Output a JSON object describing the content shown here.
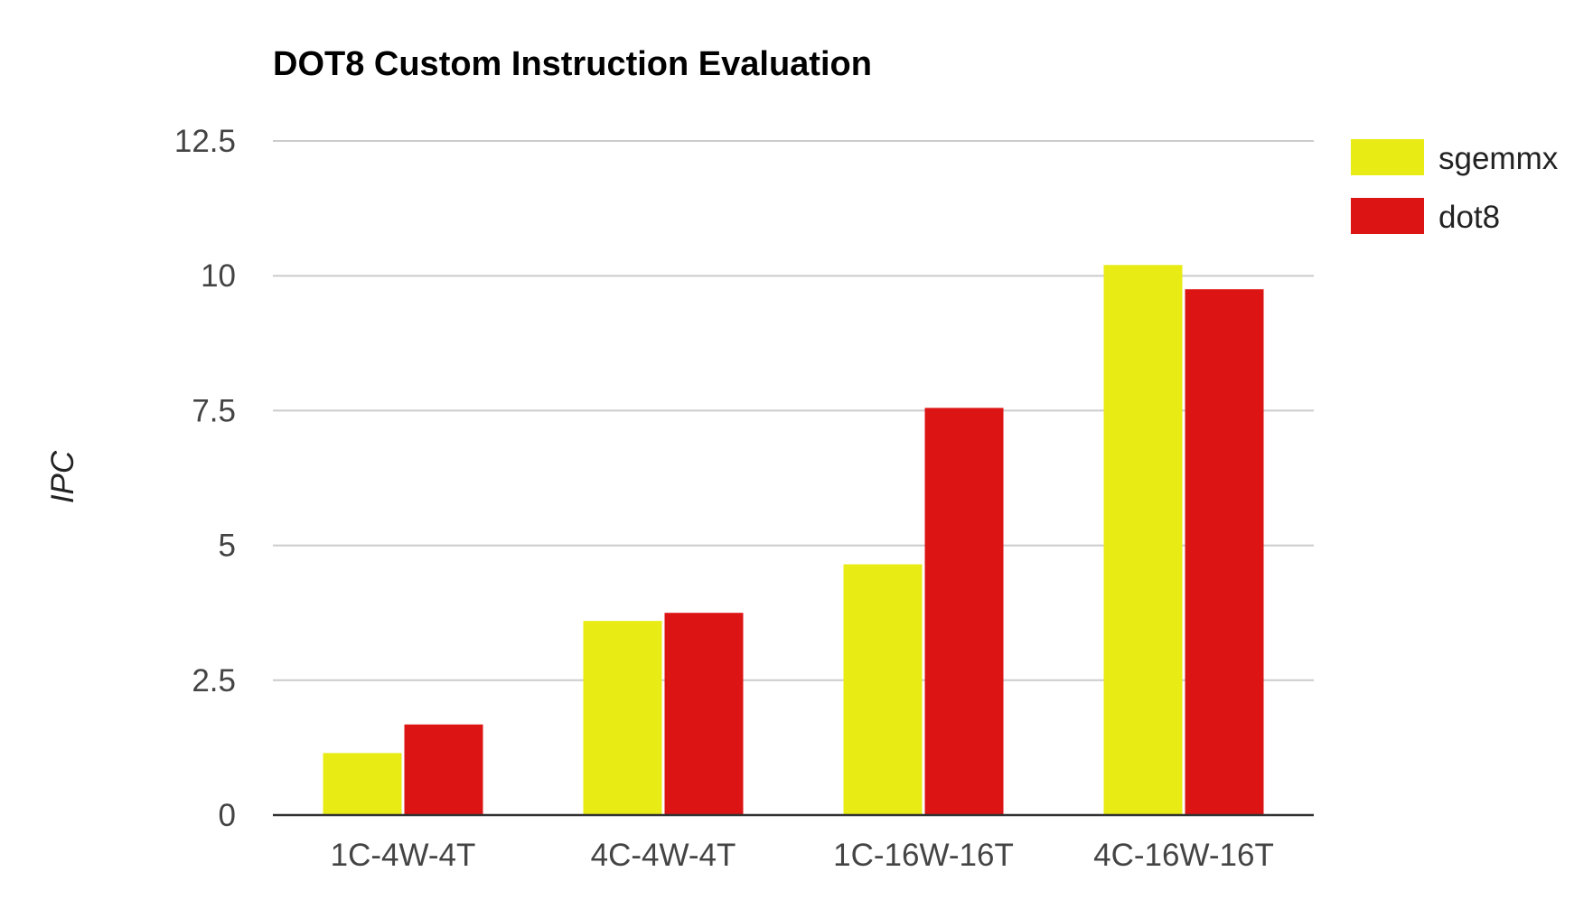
{
  "chart_data": {
    "type": "bar",
    "title": "DOT8 Custom Instruction Evaluation",
    "xlabel": "",
    "ylabel": "IPC",
    "categories": [
      "1C-4W-4T",
      "4C-4W-4T",
      "1C-16W-16T",
      "4C-16W-16T"
    ],
    "series": [
      {
        "name": "sgemmx",
        "color": "#e8ec14",
        "values": [
          1.15,
          3.6,
          4.65,
          10.2
        ]
      },
      {
        "name": "dot8",
        "color": "#dd1414",
        "values": [
          1.68,
          3.75,
          7.55,
          9.75
        ]
      }
    ],
    "ylim": [
      0,
      12.5
    ],
    "yticks": [
      0,
      2.5,
      5,
      7.5,
      10,
      12.5
    ],
    "ytick_labels": [
      "0",
      "2.5",
      "5",
      "7.5",
      "10",
      "12.5"
    ],
    "grid": true,
    "legend_position": "right"
  }
}
